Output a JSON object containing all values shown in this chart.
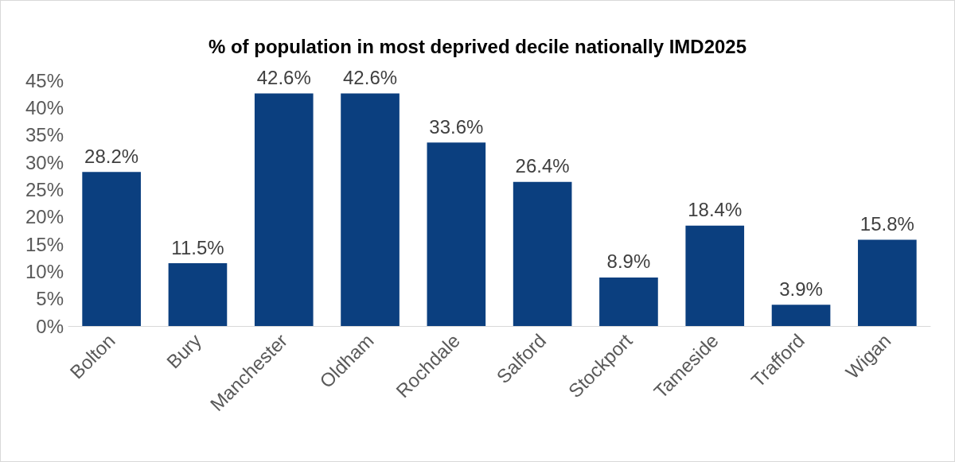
{
  "chart_data": {
    "type": "bar",
    "title": "% of population in most deprived decile nationally IMD2025",
    "categories": [
      "Bolton",
      "Bury",
      "Manchester",
      "Oldham",
      "Rochdale",
      "Salford",
      "Stockport",
      "Tameside",
      "Trafford",
      "Wigan"
    ],
    "values": [
      28.2,
      11.5,
      42.6,
      42.6,
      33.6,
      26.4,
      8.9,
      18.4,
      3.9,
      15.8
    ],
    "value_labels": [
      "28.2%",
      "11.5%",
      "42.6%",
      "42.6%",
      "33.6%",
      "26.4%",
      "8.9%",
      "18.4%",
      "3.9%",
      "15.8%"
    ],
    "color": "#0b3f7f",
    "ylim": [
      0,
      45
    ],
    "yticks": [
      {
        "value": 0,
        "label": "0%"
      },
      {
        "value": 5,
        "label": "5%"
      },
      {
        "value": 10,
        "label": "10%"
      },
      {
        "value": 15,
        "label": "15%"
      },
      {
        "value": 20,
        "label": "20%"
      },
      {
        "value": 25,
        "label": "25%"
      },
      {
        "value": 30,
        "label": "30%"
      },
      {
        "value": 35,
        "label": "35%"
      },
      {
        "value": 40,
        "label": "40%"
      },
      {
        "value": 45,
        "label": "45%"
      }
    ],
    "grid": false
  }
}
